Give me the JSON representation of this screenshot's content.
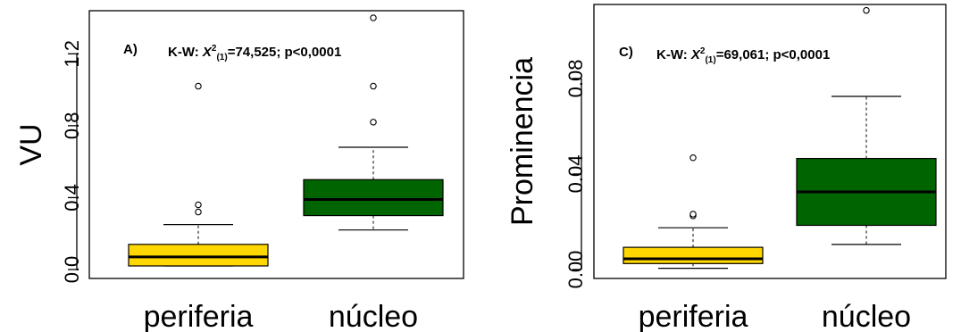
{
  "chart_data": [
    {
      "type": "boxplot",
      "panel_label": "A)",
      "annotation": {
        "prefix": "K-W: ",
        "stat": "X",
        "sup": "2",
        "sub": "(1)",
        "rest": "=74,525; p<0,0001"
      },
      "ylabel": "VU",
      "xlabel": "",
      "ylim": [
        0.0,
        1.4
      ],
      "yticks": [
        0.0,
        0.4,
        0.8,
        1.2
      ],
      "ytick_labels": [
        "0.0",
        "0.4",
        "0.8",
        "1.2"
      ],
      "grid": false,
      "categories": [
        "periferia",
        "núcleo"
      ],
      "boxes": [
        {
          "name": "periferia",
          "color": "#FFD700",
          "whisker_low": 0.02,
          "q1": 0.02,
          "median": 0.07,
          "q3": 0.14,
          "whisker_high": 0.25,
          "outliers": [
            0.32,
            0.36,
            1.02
          ]
        },
        {
          "name": "núcleo",
          "color": "#006400",
          "whisker_low": 0.22,
          "q1": 0.3,
          "median": 0.39,
          "q3": 0.5,
          "whisker_high": 0.68,
          "outliers": [
            0.82,
            1.02,
            1.4
          ]
        }
      ]
    },
    {
      "type": "boxplot",
      "panel_label": "C)",
      "annotation": {
        "prefix": "K-W: ",
        "stat": "X",
        "sup": "2",
        "sub": "(1)",
        "rest": "=69,061; p<0,0001"
      },
      "ylabel": "Prominencia",
      "xlabel": "",
      "ylim": [
        0.0,
        0.108
      ],
      "yticks": [
        0.0,
        0.04,
        0.08
      ],
      "ytick_labels": [
        "0.00",
        "0.04",
        "0.08"
      ],
      "grid": false,
      "categories": [
        "periferia",
        "núcleo"
      ],
      "boxes": [
        {
          "name": "periferia",
          "color": "#FFD700",
          "whisker_low": 0.0005,
          "q1": 0.0025,
          "median": 0.0045,
          "q3": 0.0093,
          "whisker_high": 0.0175,
          "outliers": [
            0.0225,
            0.0232,
            0.0468
          ]
        },
        {
          "name": "núcleo",
          "color": "#006400",
          "whisker_low": 0.0105,
          "q1": 0.0185,
          "median": 0.0325,
          "q3": 0.0465,
          "whisker_high": 0.0725,
          "outliers": [
            0.1085
          ]
        }
      ]
    }
  ]
}
